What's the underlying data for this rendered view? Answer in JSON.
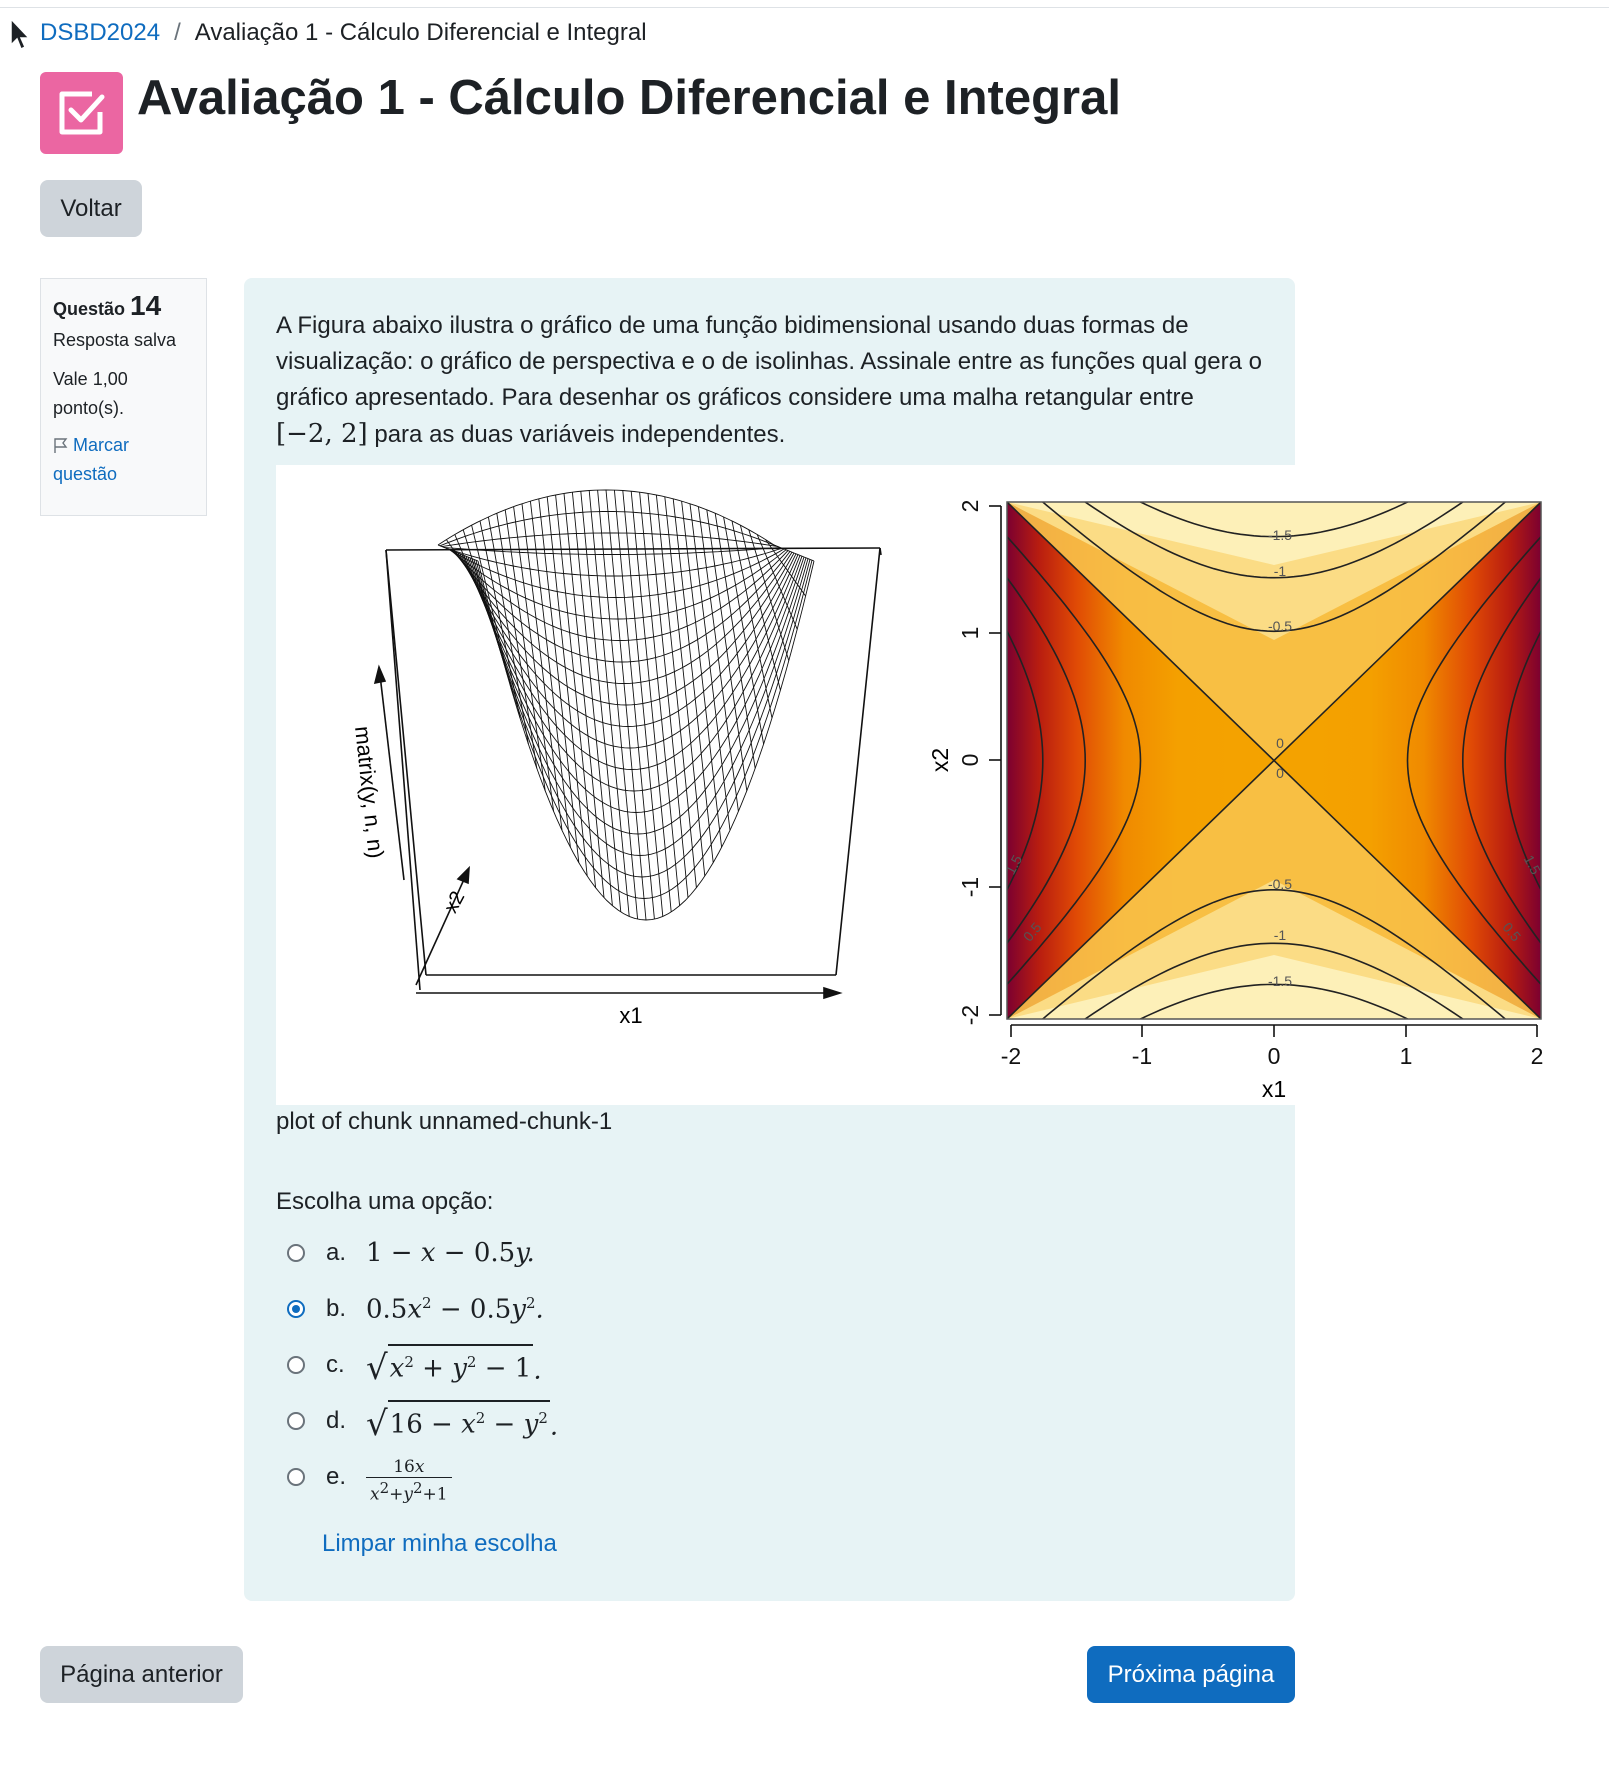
{
  "breadcrumb": {
    "course": "DSBD2024",
    "separator": "/",
    "current": "Avaliação 1 - Cálculo Diferencial e Integral"
  },
  "page": {
    "title": "Avaliação 1 - Cálculo Diferencial e Integral",
    "icon": "quiz-check-icon",
    "icon_color": "#eb66a2"
  },
  "buttons": {
    "back": "Voltar",
    "previous": "Página anterior",
    "next": "Próxima página"
  },
  "question_info": {
    "label": "Questão",
    "number": "14",
    "state": "Resposta salva",
    "grade": "Vale 1,00 ponto(s).",
    "flag": "Marcar questão"
  },
  "question": {
    "text_before": "A Figura abaixo ilustra o gráfico de uma função bidimensional usando duas formas de visualização: o gráfico de perspectiva e o de isolinhas. Assinale entre as funções qual gera o gráfico apresentado. Para desenhar os gráficos considere uma malha retangular entre",
    "interval": "[−2, 2]",
    "text_after": "para as duas variáveis independentes.",
    "caption": "plot of chunk unnamed-chunk-1",
    "prompt": "Escolha uma opção:",
    "clear": "Limpar minha escolha",
    "options": [
      {
        "letter": "a.",
        "expr": "1 − x − 0.5y.",
        "checked": false
      },
      {
        "letter": "b.",
        "expr": "0.5x² − 0.5y².",
        "checked": true
      },
      {
        "letter": "c.",
        "expr": "√(x² + y² − 1).",
        "checked": false
      },
      {
        "letter": "d.",
        "expr": "√(16 − x² − y²).",
        "checked": false
      },
      {
        "letter": "e.",
        "expr": "16x / (x² + y² + 1)",
        "checked": false
      }
    ]
  },
  "perspective_plot": {
    "xlabel": "x1",
    "ylabel": "x2",
    "zlabel": "matrix(y, n, n)"
  },
  "contour_plot": {
    "xlabel": "x1",
    "ylabel": "x2",
    "xticks": [
      "-2",
      "-1",
      "0",
      "1",
      "2"
    ],
    "yticks": [
      "-2",
      "-1",
      "0",
      "1",
      "2"
    ],
    "contour_labels_top": [
      "-1.5",
      "-1",
      "-0.5",
      "0"
    ],
    "contour_labels_bottom": [
      "0",
      "-0.5",
      "-1",
      "-1.5"
    ],
    "side_labels": [
      "1.5",
      "0.5",
      "1.5",
      "0.5"
    ]
  },
  "colors": {
    "accent": "#0f6cbf",
    "question_bg": "#e7f3f5"
  }
}
